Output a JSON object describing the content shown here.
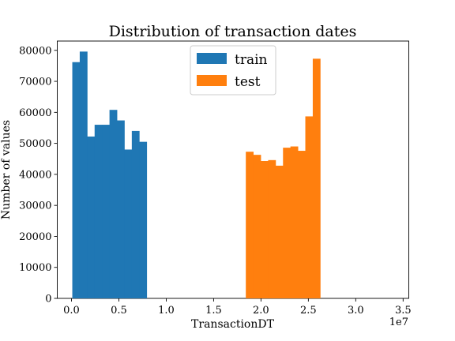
{
  "chart_data": {
    "type": "bar",
    "title": "Distribution of transaction dates",
    "xlabel": "TransactionDT",
    "ylabel": "Number of values",
    "x_multiplier_label": "1e7",
    "xlim": [
      -1500000,
      35600000
    ],
    "ylim": [
      0,
      83000
    ],
    "x_ticks": [
      0,
      5000000,
      10000000,
      15000000,
      20000000,
      25000000,
      30000000,
      35000000
    ],
    "x_tick_labels": [
      "0.0",
      "0.5",
      "1.0",
      "1.5",
      "2.0",
      "2.5",
      "3.0",
      "3.5"
    ],
    "y_ticks": [
      0,
      10000,
      20000,
      30000,
      40000,
      50000,
      60000,
      70000,
      80000
    ],
    "y_tick_labels": [
      "0",
      "10000",
      "20000",
      "30000",
      "40000",
      "50000",
      "60000",
      "70000",
      "80000"
    ],
    "grid": false,
    "legend_position": "top-center",
    "series": [
      {
        "name": "train",
        "color": "#1f77b4",
        "bin_start": 86400,
        "bin_width": 785000,
        "values": [
          76200,
          79600,
          52200,
          56000,
          56000,
          60800,
          57400,
          48000,
          54000,
          50500
        ]
      },
      {
        "name": "test",
        "color": "#ff7f0e",
        "bin_start": 18400000,
        "bin_width": 785000,
        "values": [
          47300,
          46300,
          44300,
          44600,
          42800,
          48600,
          49000,
          47600,
          58700,
          77300
        ]
      }
    ]
  }
}
